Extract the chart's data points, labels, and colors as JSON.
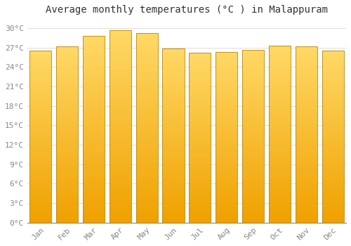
{
  "title": "Average monthly temperatures (°C ) in Malappuram",
  "months": [
    "Jan",
    "Feb",
    "Mar",
    "Apr",
    "May",
    "Jun",
    "Jul",
    "Aug",
    "Sep",
    "Oct",
    "Nov",
    "Dec"
  ],
  "values": [
    26.5,
    27.2,
    28.8,
    29.7,
    29.3,
    26.9,
    26.2,
    26.3,
    26.7,
    27.3,
    27.2,
    26.5
  ],
  "bar_color_top": "#FFD966",
  "bar_color_bottom": "#F0A000",
  "bar_edge_color": "#B8860B",
  "background_color": "#FFFFFF",
  "grid_color": "#DDDDDD",
  "yticks": [
    0,
    3,
    6,
    9,
    12,
    15,
    18,
    21,
    24,
    27,
    30
  ],
  "ylim": [
    0,
    31.5
  ],
  "title_fontsize": 10,
  "tick_fontsize": 8,
  "tick_color": "#888888",
  "font_family": "monospace",
  "bar_width": 0.82
}
